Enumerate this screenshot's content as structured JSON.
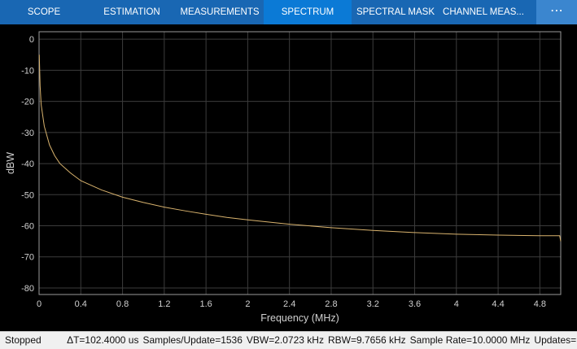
{
  "toolbar": {
    "tabs": [
      "SCOPE",
      "ESTIMATION",
      "MEASUREMENTS",
      "SPECTRUM",
      "SPECTRAL MASK",
      "CHANNEL MEAS..."
    ],
    "active_tab": 3
  },
  "chart_data": {
    "type": "line",
    "xlabel": "Frequency (MHz)",
    "ylabel": "dBW",
    "x": [
      0.002,
      0.01,
      0.02,
      0.05,
      0.1,
      0.15,
      0.2,
      0.3,
      0.4,
      0.5,
      0.6,
      0.8,
      1.0,
      1.2,
      1.4,
      1.6,
      1.8,
      2.0,
      2.4,
      2.8,
      3.2,
      3.6,
      4.0,
      4.4,
      4.8,
      4.99,
      5.0
    ],
    "series": [
      {
        "color": "#d9b36e",
        "values": [
          -5,
          -15,
          -21,
          -28,
          -34,
          -37.5,
          -40,
          -43,
          -45.5,
          -47,
          -48.5,
          -50.8,
          -52.5,
          -54,
          -55.2,
          -56.3,
          -57.3,
          -58.1,
          -59.5,
          -60.6,
          -61.5,
          -62.2,
          -62.7,
          -63,
          -63.2,
          -63.2,
          -65
        ]
      }
    ],
    "xlim": [
      0,
      5
    ],
    "ylim": [
      -82.1,
      2.4
    ],
    "xticks": [
      0,
      0.4,
      0.8,
      1.2,
      1.6,
      2,
      2.4,
      2.8,
      3.2,
      3.6,
      4,
      4.4,
      4.8
    ],
    "yticks": [
      0,
      -10,
      -20,
      -30,
      -40,
      -50,
      -60,
      -70,
      -80
    ],
    "grid": true
  },
  "status": {
    "state": "Stopped",
    "readouts": [
      "ΔT=102.4000 us",
      "Samples/Update=1536",
      "VBW=2.0723 kHz",
      "RBW=9.7656 kHz",
      "Sample Rate=10.0000 MHz",
      "Updates="
    ]
  }
}
